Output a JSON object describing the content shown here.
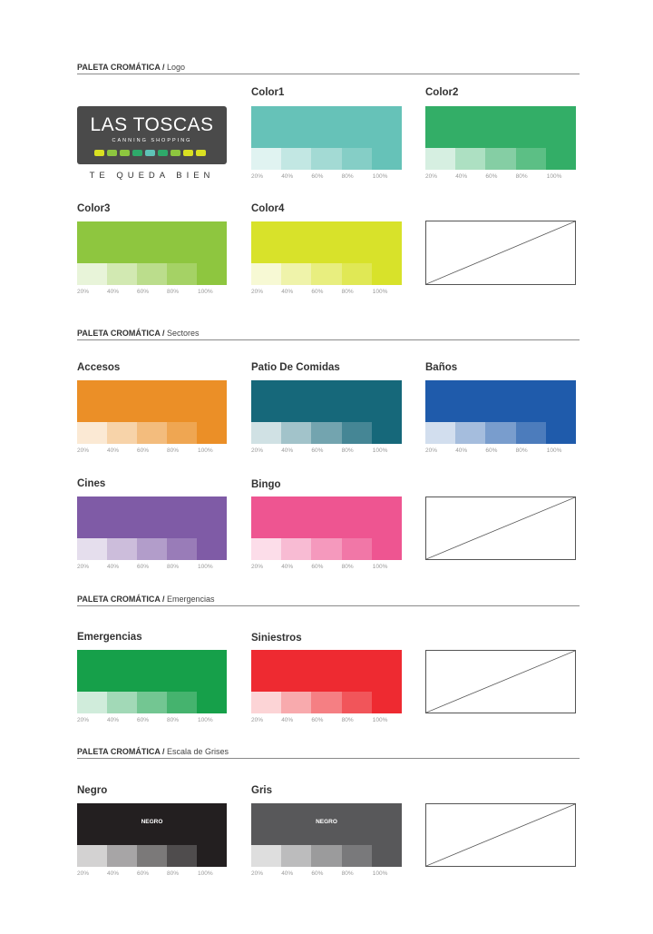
{
  "headers": [
    {
      "bold": "PALETA CROMÁTICA /",
      "light": " Logo"
    },
    {
      "bold": "PALETA CROMÁTICA /",
      "light": " Sectores"
    },
    {
      "bold": "PALETA CROMÁTICA /",
      "light": " Emergencias"
    },
    {
      "bold": "PALETA CROMÁTICA /",
      "light": " Escala de Grises"
    }
  ],
  "logo": {
    "title": "LAS TOSCAS",
    "subtitle": "CANNING SHOPPING",
    "tagline": "TE QUEDA BIEN",
    "dots": [
      "#d9e021",
      "#8dc63f",
      "#8dc63f",
      "#2ea96a",
      "#5ec3b7",
      "#2ea96a",
      "#8dc63f",
      "#d9e021",
      "#d9e021"
    ]
  },
  "swatches": [
    {
      "title": "Color1",
      "color": "#66c2b8",
      "tints": [
        "#e0f3f1",
        "#c2e7e3",
        "#a3dad4",
        "#85cec6",
        "#66c2b8"
      ]
    },
    {
      "title": "Color2",
      "color": "#33ae67",
      "tints": [
        "#d6efe1",
        "#ade0c2",
        "#85cea4",
        "#5cbf85",
        "#33ae67"
      ]
    },
    {
      "title": "Color3",
      "color": "#8ec63f",
      "tints": [
        "#e8f4d9",
        "#d2e9b2",
        "#bbdd8c",
        "#a5d265",
        "#8ec63f"
      ]
    },
    {
      "title": "Color4",
      "color": "#d8e22a",
      "tints": [
        "#f7f9d4",
        "#eff3aa",
        "#e8ee7f",
        "#e0e855",
        "#d8e22a"
      ]
    },
    {
      "title": "Accesos",
      "color": "#eb8f27",
      "tints": [
        "#fbe9d4",
        "#f7d3a9",
        "#f3bc7d",
        "#efa652",
        "#eb8f27"
      ]
    },
    {
      "title": "Patio De Comidas",
      "color": "#16687a",
      "tints": [
        "#d0e1e4",
        "#a2c3ca",
        "#73a4af",
        "#458695",
        "#16687a"
      ]
    },
    {
      "title": "Baños",
      "color": "#1f5bab",
      "tints": [
        "#d2deee",
        "#a5bddd",
        "#799dcd",
        "#4c7cbc",
        "#1f5bab"
      ]
    },
    {
      "title": "Cines",
      "color": "#7f5ba6",
      "tints": [
        "#e5deed",
        "#ccbddb",
        "#b29dca",
        "#997cb8",
        "#7f5ba6"
      ]
    },
    {
      "title": "Bingo",
      "color": "#ee5591",
      "tints": [
        "#fcdde9",
        "#f8bbd3",
        "#f599bd",
        "#f177a7",
        "#ee5591"
      ]
    },
    {
      "title": "Emergencias",
      "color": "#16a04a",
      "tints": [
        "#d0ecdb",
        "#a2d9b7",
        "#73c692",
        "#45b36e",
        "#16a04a"
      ]
    },
    {
      "title": "Siniestros",
      "color": "#ee2a31",
      "tints": [
        "#fcd4d6",
        "#f8aaad",
        "#f57f83",
        "#f1555a",
        "#ee2a31"
      ]
    },
    {
      "title": "Negro",
      "color": "#231f20",
      "inner": "NEGRO",
      "tints": [
        "#d3d2d2",
        "#a7a5a6",
        "#7b7979",
        "#4f4c4d",
        "#231f20"
      ]
    },
    {
      "title": "Gris",
      "color": "#58585a",
      "inner": "NEGRO",
      "tints": [
        "#dedede",
        "#bcbcbd",
        "#9b9b9c",
        "#79797b",
        "#58585a"
      ]
    }
  ],
  "percent_labels": [
    "20%",
    "40%",
    "60%",
    "80%",
    "100%"
  ]
}
